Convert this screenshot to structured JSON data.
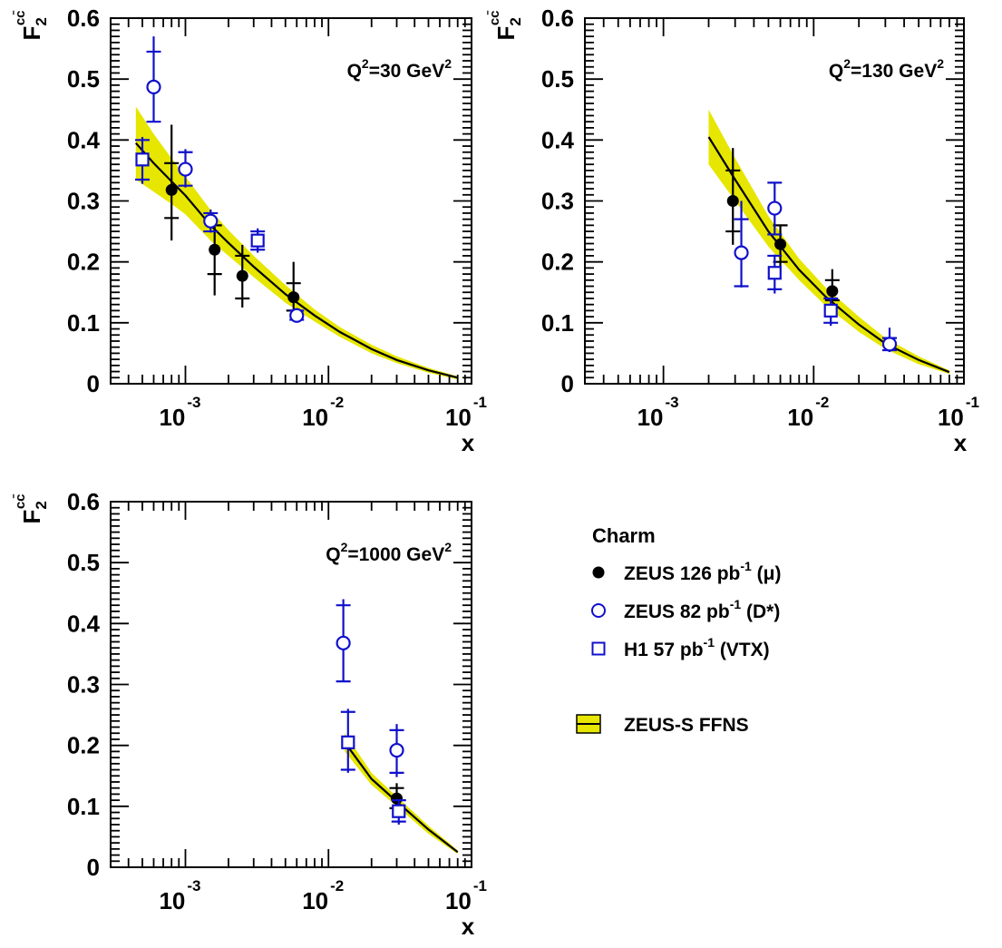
{
  "chart_data": [
    {
      "type": "scatter",
      "title": "",
      "panel_label": "Q²=30 GeV²",
      "panel_label_parts": {
        "q": "Q",
        "q_exp": "2",
        "mid": "=30 GeV",
        "unit_exp": "2"
      },
      "ylabel": "F",
      "ylabel_sub": "2",
      "ylabel_sup": "cc̄",
      "xlabel": "x",
      "xscale": "log",
      "xlim": [
        0.0003,
        0.1
      ],
      "ylim": [
        0,
        0.6
      ],
      "x_tick_labels": [
        {
          "base": "10",
          "exp": "-3"
        },
        {
          "base": "10",
          "exp": "-2"
        },
        {
          "base": "10",
          "exp": "-1"
        }
      ],
      "y_tick_labels": [
        "0",
        "0.1",
        "0.2",
        "0.3",
        "0.4",
        "0.5",
        "0.6"
      ],
      "band": {
        "x": [
          0.00045,
          0.0006,
          0.0008,
          0.001,
          0.0015,
          0.002,
          0.003,
          0.005,
          0.008,
          0.012,
          0.02,
          0.03,
          0.05,
          0.08
        ],
        "lower": [
          0.335,
          0.315,
          0.295,
          0.278,
          0.235,
          0.21,
          0.175,
          0.133,
          0.102,
          0.077,
          0.05,
          0.034,
          0.018,
          0.007
        ],
        "upper": [
          0.455,
          0.41,
          0.37,
          0.34,
          0.285,
          0.252,
          0.21,
          0.162,
          0.122,
          0.093,
          0.064,
          0.045,
          0.026,
          0.012
        ],
        "central": [
          0.395,
          0.362,
          0.332,
          0.309,
          0.26,
          0.231,
          0.192,
          0.147,
          0.112,
          0.085,
          0.057,
          0.039,
          0.022,
          0.01
        ]
      },
      "series": [
        {
          "name": "ZEUS 126 pb⁻¹ (μ)",
          "marker": "filled-circle",
          "color": "#000000",
          "points": [
            {
              "x": 0.0008,
              "y": 0.318,
              "stat": [
                0.272,
                0.362
              ],
              "tot": [
                0.235,
                0.425
              ]
            },
            {
              "x": 0.0016,
              "y": 0.22,
              "stat": [
                0.18,
                0.26
              ],
              "tot": [
                0.145,
                0.26
              ]
            },
            {
              "x": 0.0025,
              "y": 0.177,
              "stat": [
                0.14,
                0.21
              ],
              "tot": [
                0.125,
                0.228
              ]
            },
            {
              "x": 0.0057,
              "y": 0.142,
              "stat": [
                0.12,
                0.165
              ],
              "tot": [
                0.118,
                0.2
              ]
            }
          ]
        },
        {
          "name": "ZEUS 82 pb⁻¹ (D*)",
          "marker": "open-circle",
          "color": "#1010cc",
          "points": [
            {
              "x": 0.0006,
              "y": 0.487,
              "stat": [
                0.43,
                0.545
              ],
              "tot": [
                0.43,
                0.57
              ]
            },
            {
              "x": 0.001,
              "y": 0.352,
              "stat": [
                0.325,
                0.38
              ],
              "tot": [
                0.322,
                0.385
              ]
            },
            {
              "x": 0.0015,
              "y": 0.267,
              "stat": [
                0.25,
                0.28
              ],
              "tot": [
                0.248,
                0.286
              ]
            },
            {
              "x": 0.006,
              "y": 0.112,
              "stat": [
                0.105,
                0.12
              ],
              "tot": [
                0.102,
                0.123
              ]
            }
          ]
        },
        {
          "name": "H1 57 pb⁻¹ (VTX)",
          "marker": "open-square",
          "color": "#1010cc",
          "points": [
            {
              "x": 0.0005,
              "y": 0.368,
              "stat": [
                0.335,
                0.4
              ],
              "tot": [
                0.328,
                0.405
              ]
            },
            {
              "x": 0.0032,
              "y": 0.235,
              "stat": [
                0.22,
                0.25
              ],
              "tot": [
                0.215,
                0.255
              ]
            }
          ]
        }
      ]
    },
    {
      "type": "scatter",
      "title": "",
      "panel_label": "Q²=130 GeV²",
      "panel_label_parts": {
        "q": "Q",
        "q_exp": "2",
        "mid": "=130 GeV",
        "unit_exp": "2"
      },
      "ylabel": "F",
      "ylabel_sub": "2",
      "ylabel_sup": "cc̄",
      "xlabel": "x",
      "xscale": "log",
      "xlim": [
        0.0003,
        0.1
      ],
      "ylim": [
        0,
        0.6
      ],
      "x_tick_labels": [
        {
          "base": "10",
          "exp": "-3"
        },
        {
          "base": "10",
          "exp": "-2"
        },
        {
          "base": "10",
          "exp": "-1"
        }
      ],
      "y_tick_labels": [
        "0",
        "0.1",
        "0.2",
        "0.3",
        "0.4",
        "0.5",
        "0.6"
      ],
      "band": {
        "x": [
          0.002,
          0.003,
          0.005,
          0.008,
          0.012,
          0.02,
          0.03,
          0.05,
          0.08
        ],
        "lower": [
          0.36,
          0.3,
          0.225,
          0.17,
          0.128,
          0.085,
          0.057,
          0.032,
          0.016
        ],
        "upper": [
          0.45,
          0.37,
          0.275,
          0.205,
          0.158,
          0.11,
          0.075,
          0.045,
          0.022
        ],
        "central": [
          0.405,
          0.335,
          0.25,
          0.187,
          0.143,
          0.097,
          0.066,
          0.039,
          0.019
        ]
      },
      "series": [
        {
          "name": "ZEUS 126 pb⁻¹ (μ)",
          "marker": "filled-circle",
          "color": "#000000",
          "points": [
            {
              "x": 0.0029,
              "y": 0.3,
              "stat": [
                0.25,
                0.35
              ],
              "tot": [
                0.228,
                0.387
              ]
            },
            {
              "x": 0.006,
              "y": 0.229,
              "stat": [
                0.2,
                0.26
              ],
              "tot": [
                0.185,
                0.26
              ]
            },
            {
              "x": 0.0133,
              "y": 0.152,
              "stat": [
                0.137,
                0.17
              ],
              "tot": [
                0.133,
                0.188
              ]
            }
          ]
        },
        {
          "name": "ZEUS 82 pb⁻¹ (D*)",
          "marker": "open-circle",
          "color": "#1010cc",
          "points": [
            {
              "x": 0.0033,
              "y": 0.215,
              "stat": [
                0.16,
                0.27
              ],
              "tot": [
                0.158,
                0.3
              ]
            },
            {
              "x": 0.0055,
              "y": 0.288,
              "stat": [
                0.245,
                0.33
              ],
              "tot": [
                0.245,
                0.33
              ]
            },
            {
              "x": 0.032,
              "y": 0.065,
              "stat": [
                0.055,
                0.075
              ],
              "tot": [
                0.052,
                0.092
              ]
            }
          ]
        },
        {
          "name": "H1 57 pb⁻¹ (VTX)",
          "marker": "open-square",
          "color": "#1010cc",
          "points": [
            {
              "x": 0.0055,
              "y": 0.182,
              "stat": [
                0.155,
                0.21
              ],
              "tot": [
                0.148,
                0.212
              ]
            },
            {
              "x": 0.013,
              "y": 0.12,
              "stat": [
                0.1,
                0.14
              ],
              "tot": [
                0.095,
                0.142
              ]
            }
          ]
        }
      ]
    },
    {
      "type": "scatter",
      "title": "",
      "panel_label": "Q²=1000 GeV²",
      "panel_label_parts": {
        "q": "Q",
        "q_exp": "2",
        "mid": "=1000 GeV",
        "unit_exp": "2"
      },
      "ylabel": "F",
      "ylabel_sub": "2",
      "ylabel_sup": "cc̄",
      "xlabel": "x",
      "xscale": "log",
      "xlim": [
        0.0003,
        0.1
      ],
      "ylim": [
        0,
        0.6
      ],
      "x_tick_labels": [
        {
          "base": "10",
          "exp": "-3"
        },
        {
          "base": "10",
          "exp": "-2"
        },
        {
          "base": "10",
          "exp": "-1"
        }
      ],
      "y_tick_labels": [
        "0",
        "0.1",
        "0.2",
        "0.3",
        "0.4",
        "0.5",
        "0.6"
      ],
      "band": {
        "x": [
          0.013,
          0.02,
          0.03,
          0.05,
          0.08
        ],
        "lower": [
          0.19,
          0.135,
          0.1,
          0.055,
          0.022
        ],
        "upper": [
          0.22,
          0.155,
          0.116,
          0.068,
          0.028
        ],
        "central": [
          0.205,
          0.145,
          0.108,
          0.062,
          0.025
        ]
      },
      "series": [
        {
          "name": "ZEUS 126 pb⁻¹ (μ)",
          "marker": "filled-circle",
          "color": "#000000",
          "points": [
            {
              "x": 0.03,
              "y": 0.113,
              "stat": [
                0.097,
                0.13
              ],
              "tot": [
                0.09,
                0.138
              ]
            }
          ]
        },
        {
          "name": "ZEUS 82 pb⁻¹ (D*)",
          "marker": "open-circle",
          "color": "#1010cc",
          "points": [
            {
              "x": 0.0127,
              "y": 0.368,
              "stat": [
                0.305,
                0.43
              ],
              "tot": [
                0.305,
                0.44
              ]
            },
            {
              "x": 0.03,
              "y": 0.192,
              "stat": [
                0.155,
                0.225
              ],
              "tot": [
                0.148,
                0.235
              ]
            }
          ]
        },
        {
          "name": "H1 57 pb⁻¹ (VTX)",
          "marker": "open-square",
          "color": "#1010cc",
          "points": [
            {
              "x": 0.0137,
              "y": 0.205,
              "stat": [
                0.16,
                0.255
              ],
              "tot": [
                0.155,
                0.26
              ]
            },
            {
              "x": 0.031,
              "y": 0.092,
              "stat": [
                0.075,
                0.11
              ],
              "tot": [
                0.07,
                0.112
              ]
            }
          ]
        }
      ]
    }
  ],
  "legend": {
    "title": "Charm",
    "items": [
      {
        "marker": "filled-circle",
        "color": "#000000",
        "text": "ZEUS 126 pb",
        "exp": "-1",
        "suffix": " (μ)"
      },
      {
        "marker": "open-circle",
        "color": "#1010cc",
        "text": "ZEUS 82 pb",
        "exp": "-1",
        "suffix": " (D*)"
      },
      {
        "marker": "open-square",
        "color": "#1010cc",
        "text": "H1 57 pb",
        "exp": "-1",
        "suffix": " (VTX)"
      },
      {
        "marker": "band",
        "color": "#e6e600",
        "text": "ZEUS-S FFNS",
        "exp": "",
        "suffix": ""
      }
    ]
  },
  "colors": {
    "band": "#e6e600",
    "central": "#000000",
    "zeus_mu": "#000000",
    "blue": "#1010cc"
  }
}
